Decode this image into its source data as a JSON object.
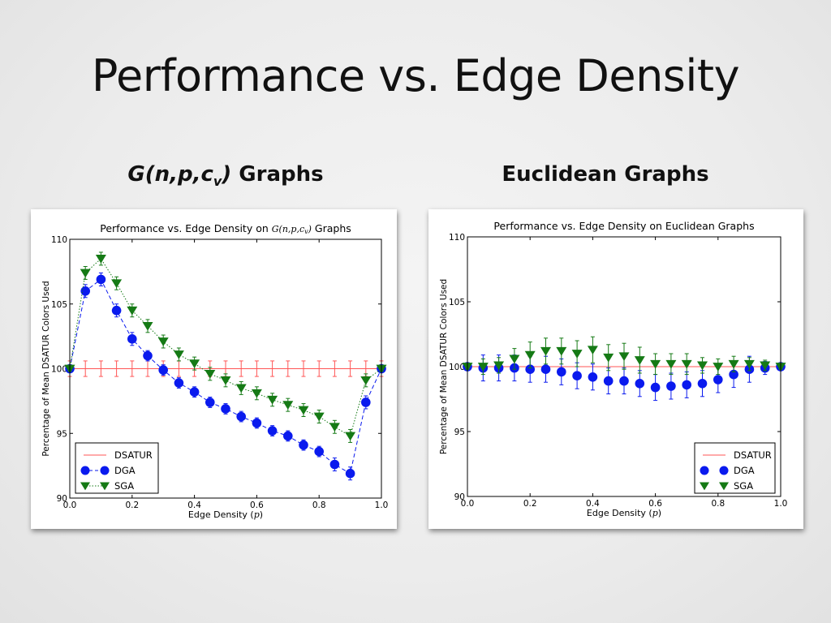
{
  "slide": {
    "title": "Performance vs. Edge Density",
    "left_heading": {
      "italic": "G(n,p,c",
      "sub": "v",
      "italic_close": ")",
      "rest": " Graphs"
    },
    "right_heading": "Euclidean Graphs"
  },
  "colors": {
    "dsatur": "#ff5555",
    "dga": "#0a1aee",
    "sga": "#157a15"
  },
  "chart_data": [
    {
      "type": "line",
      "title": "Performance vs. Edge Density on G(n,p,c_v) Graphs",
      "title_parts": [
        "Performance vs. Edge Density on ",
        "G(n,p,c",
        "v",
        ") Graphs"
      ],
      "xlabel_parts": [
        "Edge Density (",
        "p",
        ")"
      ],
      "ylabel": "Percentage of Mean DSATUR Colors Used",
      "xlim": [
        0.0,
        1.0
      ],
      "ylim": [
        90,
        110
      ],
      "x_ticks": [
        "0.0",
        "0.2",
        "0.4",
        "0.6",
        "0.8",
        "1.0"
      ],
      "y_ticks": [
        "90",
        "95",
        "100",
        "105",
        "110"
      ],
      "legend_position": "lower-left",
      "x": [
        0.0,
        0.05,
        0.1,
        0.15,
        0.2,
        0.25,
        0.3,
        0.35,
        0.4,
        0.45,
        0.5,
        0.55,
        0.6,
        0.65,
        0.7,
        0.75,
        0.8,
        0.85,
        0.9,
        0.95,
        1.0
      ],
      "series": [
        {
          "name": "DSATUR",
          "style": "line",
          "values": [
            100,
            100,
            100,
            100,
            100,
            100,
            100,
            100,
            100,
            100,
            100,
            100,
            100,
            100,
            100,
            100,
            100,
            100,
            100,
            100,
            100
          ],
          "errors": [
            0.6,
            0.6,
            0.6,
            0.6,
            0.6,
            0.6,
            0.6,
            0.6,
            0.6,
            0.6,
            0.6,
            0.6,
            0.6,
            0.6,
            0.6,
            0.6,
            0.6,
            0.6,
            0.6,
            0.6,
            0.6
          ]
        },
        {
          "name": "DGA",
          "style": "dashed-circle",
          "values": [
            100,
            106.0,
            106.9,
            104.5,
            102.3,
            101.0,
            99.9,
            98.9,
            98.2,
            97.4,
            96.9,
            96.3,
            95.8,
            95.2,
            94.8,
            94.1,
            93.6,
            92.6,
            91.9,
            97.4,
            100
          ],
          "errors": [
            0.2,
            0.5,
            0.5,
            0.5,
            0.5,
            0.4,
            0.4,
            0.4,
            0.4,
            0.4,
            0.4,
            0.4,
            0.4,
            0.4,
            0.4,
            0.4,
            0.4,
            0.5,
            0.5,
            0.5,
            0.2
          ]
        },
        {
          "name": "SGA",
          "style": "dotted-triangle",
          "values": [
            100,
            107.4,
            108.5,
            106.6,
            104.5,
            103.3,
            102.1,
            101.1,
            100.4,
            99.6,
            99.1,
            98.5,
            98.1,
            97.6,
            97.2,
            96.8,
            96.3,
            95.5,
            94.8,
            99.1,
            100
          ],
          "errors": [
            0.2,
            0.5,
            0.5,
            0.5,
            0.5,
            0.5,
            0.5,
            0.5,
            0.5,
            0.5,
            0.5,
            0.5,
            0.5,
            0.5,
            0.5,
            0.5,
            0.5,
            0.5,
            0.5,
            0.5,
            0.2
          ]
        }
      ]
    },
    {
      "type": "line",
      "title": "Performance vs. Edge Density on Euclidean Graphs",
      "title_parts": [
        "Performance vs. Edge Density on Euclidean Graphs",
        "",
        "",
        ""
      ],
      "xlabel_parts": [
        "Edge Density (",
        "p",
        ")"
      ],
      "ylabel": "Percentage of Mean DSATUR Colors Used",
      "xlim": [
        0.0,
        1.0
      ],
      "ylim": [
        90,
        110
      ],
      "x_ticks": [
        "0.0",
        "0.2",
        "0.4",
        "0.6",
        "0.8",
        "1.0"
      ],
      "y_ticks": [
        "90",
        "95",
        "100",
        "105",
        "110"
      ],
      "legend_position": "lower-right",
      "x": [
        0.0,
        0.05,
        0.1,
        0.15,
        0.2,
        0.25,
        0.3,
        0.35,
        0.4,
        0.45,
        0.5,
        0.55,
        0.6,
        0.65,
        0.7,
        0.75,
        0.8,
        0.85,
        0.9,
        0.95,
        1.0
      ],
      "series": [
        {
          "name": "DSATUR",
          "style": "line",
          "values": [
            100,
            100,
            100,
            100,
            100,
            100,
            100,
            100,
            100,
            100,
            100,
            100,
            100,
            100,
            100,
            100,
            100,
            100,
            100,
            100,
            100
          ],
          "errors": [
            0,
            0,
            0,
            0,
            0,
            0,
            0,
            0,
            0,
            0,
            0,
            0,
            0,
            0,
            0,
            0,
            0,
            0,
            0,
            0,
            0
          ]
        },
        {
          "name": "DGA",
          "style": "circle-only",
          "values": [
            100,
            99.9,
            99.9,
            99.9,
            99.8,
            99.8,
            99.6,
            99.3,
            99.2,
            98.9,
            98.9,
            98.7,
            98.4,
            98.5,
            98.6,
            98.7,
            99.0,
            99.4,
            99.8,
            99.9,
            100
          ],
          "errors": [
            0.3,
            1.0,
            1.0,
            1.0,
            1.0,
            1.0,
            1.0,
            1.0,
            1.0,
            1.0,
            1.0,
            1.0,
            1.0,
            1.0,
            1.0,
            1.0,
            1.0,
            1.0,
            1.0,
            0.5,
            0.2
          ]
        },
        {
          "name": "SGA",
          "style": "triangle-only",
          "values": [
            100,
            100,
            100.1,
            100.6,
            100.9,
            101.2,
            101.2,
            101.0,
            101.3,
            100.7,
            100.8,
            100.5,
            100.2,
            100.2,
            100.2,
            100.1,
            100.0,
            100.2,
            100.2,
            100.1,
            100
          ],
          "errors": [
            0.2,
            0.6,
            0.6,
            0.8,
            1.0,
            1.0,
            1.0,
            1.0,
            1.0,
            1.0,
            1.0,
            1.0,
            0.8,
            0.8,
            0.8,
            0.6,
            0.6,
            0.6,
            0.5,
            0.4,
            0.2
          ]
        }
      ]
    }
  ]
}
